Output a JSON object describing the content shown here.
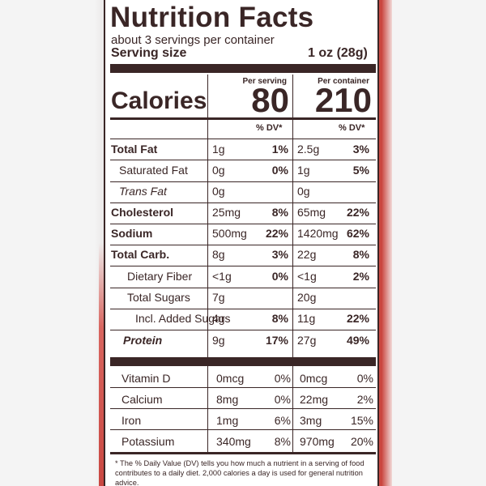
{
  "panel": {
    "title": "Nutrition Facts",
    "servings": "about 3 servings per container",
    "serving_size_label": "Serving size",
    "serving_size_value": "1 oz (28g)"
  },
  "calories": {
    "label": "Calories",
    "per_serving_header": "Per serving",
    "per_container_header": "Per container",
    "per_serving": "80",
    "per_container": "210"
  },
  "dv_header": {
    "serving": "% DV*",
    "container": "% DV*"
  },
  "nutrients": [
    {
      "name": "Total Fat",
      "serving_amount": "1g",
      "serving_dv": "1%",
      "container_amount": "2.5g",
      "container_dv": "3%"
    },
    {
      "name": "Saturated Fat",
      "serving_amount": "0g",
      "serving_dv": "0%",
      "container_amount": "1g",
      "container_dv": "5%"
    },
    {
      "name": "Trans Fat",
      "serving_amount": "0g",
      "serving_dv": "",
      "container_amount": "0g",
      "container_dv": ""
    },
    {
      "name": "Cholesterol",
      "serving_amount": "25mg",
      "serving_dv": "8%",
      "container_amount": "65mg",
      "container_dv": "22%"
    },
    {
      "name": "Sodium",
      "serving_amount": "500mg",
      "serving_dv": "22%",
      "container_amount": "1420mg",
      "container_dv": "62%"
    },
    {
      "name": "Total Carb.",
      "serving_amount": "8g",
      "serving_dv": "3%",
      "container_amount": "22g",
      "container_dv": "8%"
    },
    {
      "name": "Dietary Fiber",
      "serving_amount": "<1g",
      "serving_dv": "0%",
      "container_amount": "<1g",
      "container_dv": "2%"
    },
    {
      "name": "Total Sugars",
      "serving_amount": "7g",
      "serving_dv": "",
      "container_amount": "20g",
      "container_dv": ""
    },
    {
      "name": "Incl. Added Sugars",
      "serving_amount": "4g",
      "serving_dv": "8%",
      "container_amount": "11g",
      "container_dv": "22%"
    },
    {
      "name": "Protein",
      "serving_amount": "9g",
      "serving_dv": "17%",
      "container_amount": "27g",
      "container_dv": "49%"
    }
  ],
  "vitamins": [
    {
      "name": "Vitamin D",
      "serving_amount": "0mcg",
      "serving_dv": "0%",
      "container_amount": "0mcg",
      "container_dv": "0%"
    },
    {
      "name": "Calcium",
      "serving_amount": "8mg",
      "serving_dv": "0%",
      "container_amount": "22mg",
      "container_dv": "2%"
    },
    {
      "name": "Iron",
      "serving_amount": "1mg",
      "serving_dv": "6%",
      "container_amount": "3mg",
      "container_dv": "15%"
    },
    {
      "name": "Potassium",
      "serving_amount": "340mg",
      "serving_dv": "8%",
      "container_amount": "970mg",
      "container_dv": "20%"
    }
  ],
  "footnote": "* The % Daily Value (DV) tells you how much a nutrient in a serving of food contributes to a daily diet. 2,000 calories a day is used for general nutrition advice.",
  "colors": {
    "ink": "#3a2626",
    "package_red": "#c9423b"
  }
}
